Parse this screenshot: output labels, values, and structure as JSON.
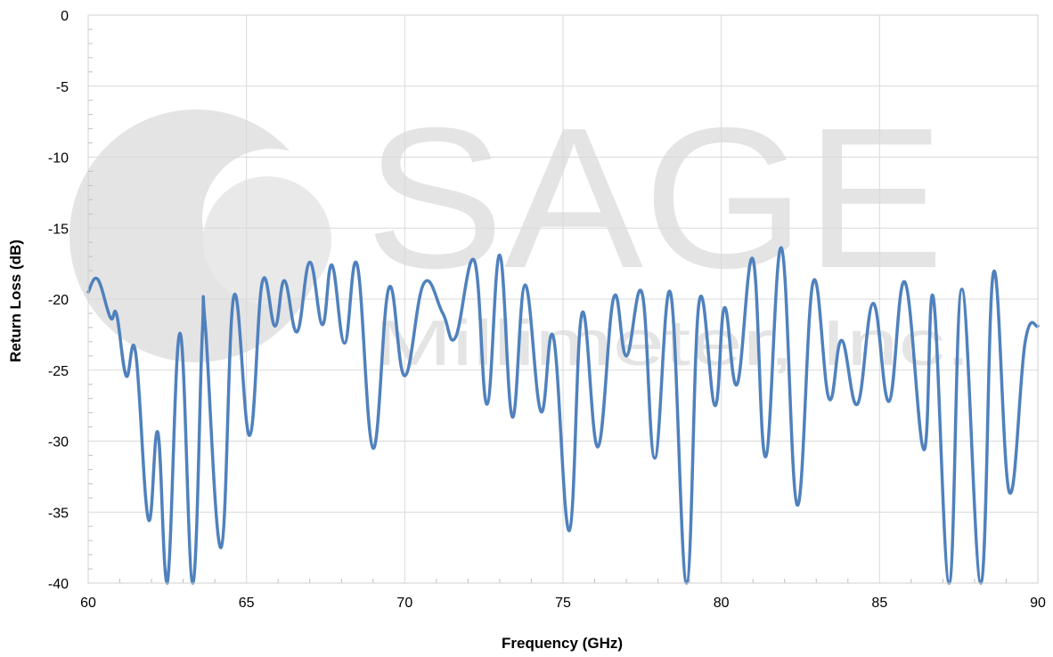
{
  "chart_data": {
    "type": "line",
    "title": "",
    "xlabel": "Frequency (GHz)",
    "ylabel": "Return Loss (dB)",
    "xlim": [
      60,
      90
    ],
    "ylim": [
      -40,
      0
    ],
    "x_ticks": [
      60,
      65,
      70,
      75,
      80,
      85,
      90
    ],
    "y_ticks": [
      0,
      -5,
      -10,
      -15,
      -20,
      -25,
      -30,
      -35,
      -40
    ],
    "x_tick_labels": [
      "60",
      "65",
      "70",
      "75",
      "80",
      "85",
      "90"
    ],
    "y_tick_labels": [
      "0",
      "-5",
      "-10",
      "-15",
      "-20",
      "-25",
      "-30",
      "-35",
      "-40"
    ],
    "grid": true,
    "line_color": "#4f81bd",
    "watermark": {
      "primary": "SAGE",
      "secondary": "Millimeter, Inc."
    },
    "series": [
      {
        "values": [
          [
            60.0,
            -19.5
          ],
          [
            60.3,
            -18.6
          ],
          [
            60.7,
            -21.3
          ],
          [
            60.9,
            -21.1
          ],
          [
            61.2,
            -25.4
          ],
          [
            61.5,
            -23.8
          ],
          [
            61.9,
            -35.5
          ],
          [
            62.2,
            -29.4
          ],
          [
            62.5,
            -40.0
          ],
          [
            62.9,
            -22.4
          ],
          [
            63.3,
            -40.0
          ],
          [
            63.6,
            -22.7
          ],
          [
            63.7,
            -21.9
          ],
          [
            64.2,
            -37.5
          ],
          [
            64.6,
            -19.8
          ],
          [
            65.1,
            -29.6
          ],
          [
            65.5,
            -18.8
          ],
          [
            65.9,
            -21.9
          ],
          [
            66.2,
            -18.7
          ],
          [
            66.6,
            -22.3
          ],
          [
            67.0,
            -17.4
          ],
          [
            67.4,
            -21.8
          ],
          [
            67.7,
            -17.6
          ],
          [
            68.1,
            -23.1
          ],
          [
            68.5,
            -17.6
          ],
          [
            69.0,
            -30.5
          ],
          [
            69.5,
            -19.2
          ],
          [
            70.0,
            -25.4
          ],
          [
            70.6,
            -18.9
          ],
          [
            71.2,
            -21.0
          ],
          [
            71.6,
            -22.7
          ],
          [
            72.2,
            -17.3
          ],
          [
            72.6,
            -27.4
          ],
          [
            73.0,
            -16.9
          ],
          [
            73.4,
            -28.3
          ],
          [
            73.8,
            -19.0
          ],
          [
            74.3,
            -27.9
          ],
          [
            74.7,
            -22.7
          ],
          [
            75.2,
            -36.3
          ],
          [
            75.6,
            -21.0
          ],
          [
            76.1,
            -30.4
          ],
          [
            76.6,
            -19.9
          ],
          [
            77.0,
            -24.0
          ],
          [
            77.5,
            -19.6
          ],
          [
            77.9,
            -31.2
          ],
          [
            78.4,
            -19.6
          ],
          [
            78.9,
            -40.0
          ],
          [
            79.3,
            -20.2
          ],
          [
            79.8,
            -27.5
          ],
          [
            80.1,
            -20.6
          ],
          [
            80.5,
            -26.0
          ],
          [
            81.0,
            -17.2
          ],
          [
            81.4,
            -31.1
          ],
          [
            81.9,
            -16.4
          ],
          [
            82.4,
            -34.5
          ],
          [
            82.9,
            -18.8
          ],
          [
            83.4,
            -27.0
          ],
          [
            83.8,
            -22.9
          ],
          [
            84.3,
            -27.4
          ],
          [
            84.8,
            -20.3
          ],
          [
            85.3,
            -27.2
          ],
          [
            85.8,
            -18.8
          ],
          [
            86.4,
            -30.6
          ],
          [
            86.7,
            -19.9
          ],
          [
            87.2,
            -40.0
          ],
          [
            87.6,
            -19.3
          ],
          [
            88.2,
            -40.0
          ],
          [
            88.6,
            -18.1
          ],
          [
            89.1,
            -33.6
          ],
          [
            89.6,
            -23.0
          ],
          [
            90.0,
            -21.9
          ]
        ]
      }
    ]
  }
}
